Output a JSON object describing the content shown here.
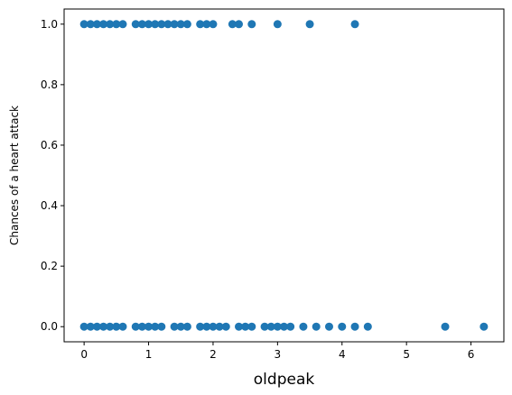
{
  "chart_data": {
    "type": "scatter",
    "title": "",
    "xlabel": "oldpeak",
    "ylabel": "Chances of a heart attack",
    "xlim": [
      -0.31,
      6.51
    ],
    "ylim": [
      -0.05,
      1.05
    ],
    "xticks": [
      0,
      1,
      2,
      3,
      4,
      5,
      6
    ],
    "xtick_labels": [
      "0",
      "1",
      "2",
      "3",
      "4",
      "5",
      "6"
    ],
    "yticks": [
      0.0,
      0.2,
      0.4,
      0.6,
      0.8,
      1.0
    ],
    "ytick_labels": [
      "0.0",
      "0.2",
      "0.4",
      "0.6",
      "0.8",
      "1.0"
    ],
    "grid": false,
    "marker_color": "#1f77b4",
    "series": [
      {
        "points": [
          [
            0.0,
            1
          ],
          [
            0.1,
            1
          ],
          [
            0.2,
            1
          ],
          [
            0.3,
            1
          ],
          [
            0.4,
            1
          ],
          [
            0.5,
            1
          ],
          [
            0.6,
            1
          ],
          [
            0.8,
            1
          ],
          [
            0.9,
            1
          ],
          [
            1.0,
            1
          ],
          [
            1.1,
            1
          ],
          [
            1.2,
            1
          ],
          [
            1.3,
            1
          ],
          [
            1.4,
            1
          ],
          [
            1.5,
            1
          ],
          [
            1.6,
            1
          ],
          [
            1.8,
            1
          ],
          [
            1.9,
            1
          ],
          [
            2.0,
            1
          ],
          [
            2.3,
            1
          ],
          [
            2.4,
            1
          ],
          [
            2.6,
            1
          ],
          [
            3.0,
            1
          ],
          [
            3.5,
            1
          ],
          [
            4.2,
            1
          ],
          [
            0.0,
            0
          ],
          [
            0.1,
            0
          ],
          [
            0.2,
            0
          ],
          [
            0.3,
            0
          ],
          [
            0.4,
            0
          ],
          [
            0.5,
            0
          ],
          [
            0.6,
            0
          ],
          [
            0.8,
            0
          ],
          [
            0.9,
            0
          ],
          [
            1.0,
            0
          ],
          [
            1.1,
            0
          ],
          [
            1.2,
            0
          ],
          [
            1.4,
            0
          ],
          [
            1.5,
            0
          ],
          [
            1.6,
            0
          ],
          [
            1.8,
            0
          ],
          [
            1.9,
            0
          ],
          [
            2.0,
            0
          ],
          [
            2.1,
            0
          ],
          [
            2.2,
            0
          ],
          [
            2.4,
            0
          ],
          [
            2.5,
            0
          ],
          [
            2.6,
            0
          ],
          [
            2.8,
            0
          ],
          [
            2.9,
            0
          ],
          [
            3.0,
            0
          ],
          [
            3.1,
            0
          ],
          [
            3.2,
            0
          ],
          [
            3.4,
            0
          ],
          [
            3.6,
            0
          ],
          [
            3.8,
            0
          ],
          [
            4.0,
            0
          ],
          [
            4.2,
            0
          ],
          [
            4.4,
            0
          ],
          [
            5.6,
            0
          ],
          [
            6.2,
            0
          ]
        ]
      }
    ]
  }
}
